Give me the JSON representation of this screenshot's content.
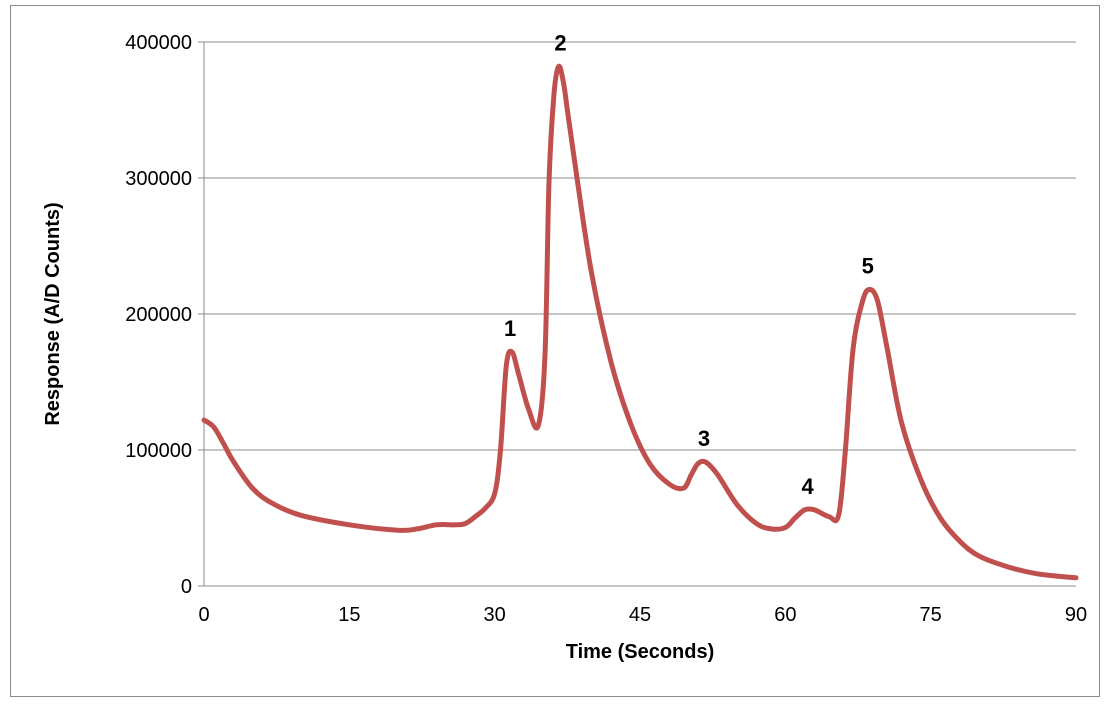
{
  "chart_data": {
    "type": "line",
    "title": "",
    "xlabel": "Time (Seconds)",
    "ylabel": "Response (A/D Counts)",
    "xlim": [
      0,
      90
    ],
    "ylim": [
      0,
      400000
    ],
    "x_ticks": [
      0,
      15,
      30,
      45,
      60,
      75,
      90
    ],
    "x_tick_labels": [
      "0",
      "15",
      "30",
      "45",
      "60",
      "75",
      "90"
    ],
    "y_ticks": [
      0,
      100000,
      200000,
      300000,
      400000
    ],
    "y_tick_labels": [
      "0",
      "100000",
      "200000",
      "300000",
      "400000"
    ],
    "grid": "horizontal",
    "legend": "none",
    "series": [
      {
        "color": "#c0504d",
        "x": [
          0,
          1,
          2,
          3,
          5,
          7,
          10,
          15,
          20,
          22,
          24,
          26,
          27,
          28,
          29,
          30,
          30.6,
          31.2,
          31.8,
          32.5,
          33.5,
          34.5,
          35.2,
          35.6,
          36.1,
          36.6,
          37.1,
          37.6,
          38.5,
          40,
          42,
          44,
          46,
          48,
          49.5,
          50.3,
          51,
          51.8,
          53,
          55,
          57,
          58.5,
          60,
          61,
          62,
          63,
          64.5,
          65.5,
          66.2,
          67,
          68,
          68.7,
          69.5,
          70.5,
          72,
          74,
          76,
          78,
          80,
          83,
          86,
          90
        ],
        "y": [
          122000,
          117000,
          105000,
          92000,
          72000,
          61000,
          52000,
          45000,
          41000,
          42000,
          45000,
          45000,
          46000,
          51000,
          57000,
          68000,
          100000,
          162000,
          172000,
          155000,
          130000,
          118000,
          170000,
          295000,
          360000,
          382000,
          370000,
          345000,
          300000,
          230000,
          165000,
          120000,
          90000,
          75000,
          72000,
          82000,
          90000,
          91000,
          82000,
          60000,
          46000,
          42000,
          43000,
          50000,
          56000,
          56000,
          51000,
          52000,
          100000,
          175000,
          210000,
          218000,
          210000,
          175000,
          120000,
          78000,
          50000,
          33000,
          22000,
          14000,
          9000,
          6000
        ]
      }
    ],
    "annotations": [
      {
        "text": "1",
        "x": 31.6,
        "y": 172000
      },
      {
        "text": "2",
        "x": 36.8,
        "y": 382000
      },
      {
        "text": "3",
        "x": 51.6,
        "y": 91000
      },
      {
        "text": "4",
        "x": 62.3,
        "y": 56000
      },
      {
        "text": "5",
        "x": 68.5,
        "y": 218000
      }
    ]
  }
}
